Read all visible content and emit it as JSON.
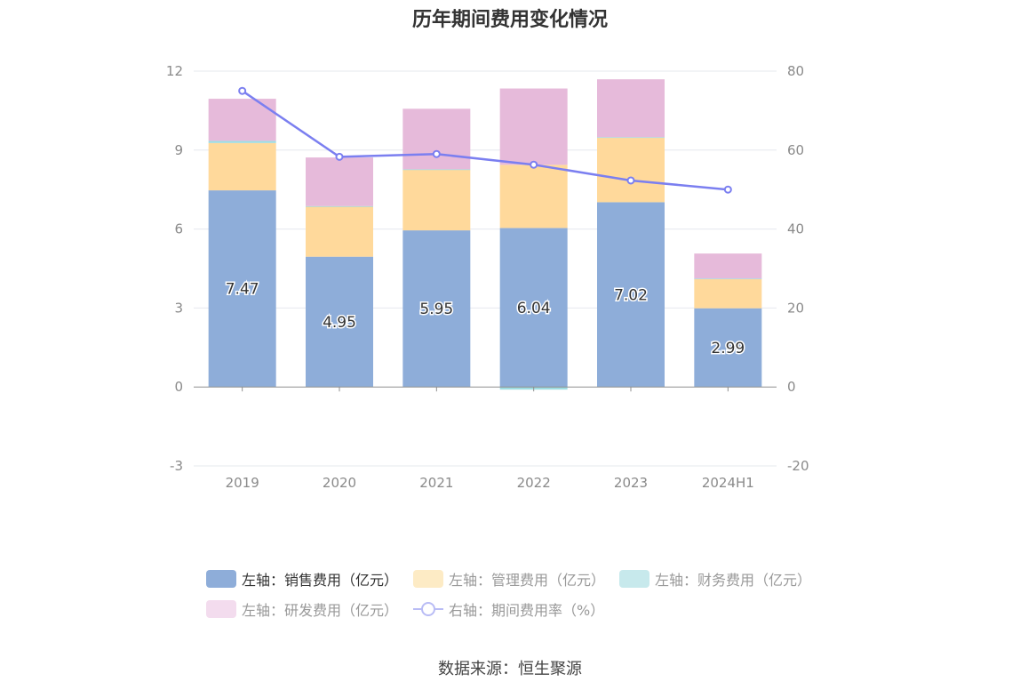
{
  "title": "历年期间费用变化情况",
  "source": "数据来源：恒生聚源",
  "legend": [
    {
      "label": "左轴：销售费用（亿元）",
      "color": "#8eadd9",
      "kind": "box",
      "text_color": "#333333"
    },
    {
      "label": "左轴：管理费用（亿元）",
      "color": "#fdebc5",
      "kind": "box",
      "text_color": "#999999"
    },
    {
      "label": "左轴：财务费用（亿元）",
      "color": "#c7e9ec",
      "kind": "box",
      "text_color": "#999999"
    },
    {
      "label": "左轴：研发费用（亿元）",
      "color": "#f3dcee",
      "kind": "box",
      "text_color": "#999999"
    },
    {
      "label": "右轴：期间费用率（%）",
      "color": "#b9bcf5",
      "kind": "line",
      "text_color": "#999999"
    }
  ],
  "chart_data": {
    "type": "bar",
    "stacked": true,
    "categories": [
      "2019",
      "2020",
      "2021",
      "2022",
      "2023",
      "2024H1"
    ],
    "left_axis": {
      "ylim": [
        -3,
        12
      ],
      "ticks": [
        "-3",
        "0",
        "3",
        "6",
        "9",
        "12"
      ]
    },
    "right_axis": {
      "ylim": [
        -20,
        80
      ],
      "ticks": [
        "-20",
        "0",
        "20",
        "40",
        "60",
        "80"
      ]
    },
    "grid": true,
    "legend_position": "bottom",
    "series": [
      {
        "name": "左轴：销售费用（亿元）",
        "type": "bar",
        "axis": "left",
        "color": "#8eadd9",
        "values": [
          7.47,
          4.95,
          5.95,
          6.04,
          7.02,
          2.99
        ],
        "labels": [
          "7.47",
          "4.95",
          "5.95",
          "6.04",
          "7.02",
          "2.99"
        ]
      },
      {
        "name": "左轴：管理费用（亿元）",
        "type": "bar",
        "axis": "left",
        "color": "#ffd99b",
        "values": [
          1.8,
          1.9,
          2.3,
          2.4,
          2.45,
          1.12
        ]
      },
      {
        "name": "左轴：财务费用（亿元）",
        "type": "bar",
        "axis": "left",
        "color": "#9fdde2",
        "values": [
          0.08,
          0.02,
          0.02,
          -0.1,
          0.02,
          0.01
        ]
      },
      {
        "name": "左轴：研发费用（亿元）",
        "type": "bar",
        "axis": "left",
        "color": "#e6bada",
        "values": [
          1.6,
          1.85,
          2.3,
          2.9,
          2.2,
          0.95
        ]
      },
      {
        "name": "右轴：期间费用率（%）",
        "type": "line",
        "axis": "right",
        "color": "#7b7ff0",
        "values": [
          75,
          58.3,
          59,
          56.3,
          52.3,
          50
        ]
      }
    ]
  }
}
